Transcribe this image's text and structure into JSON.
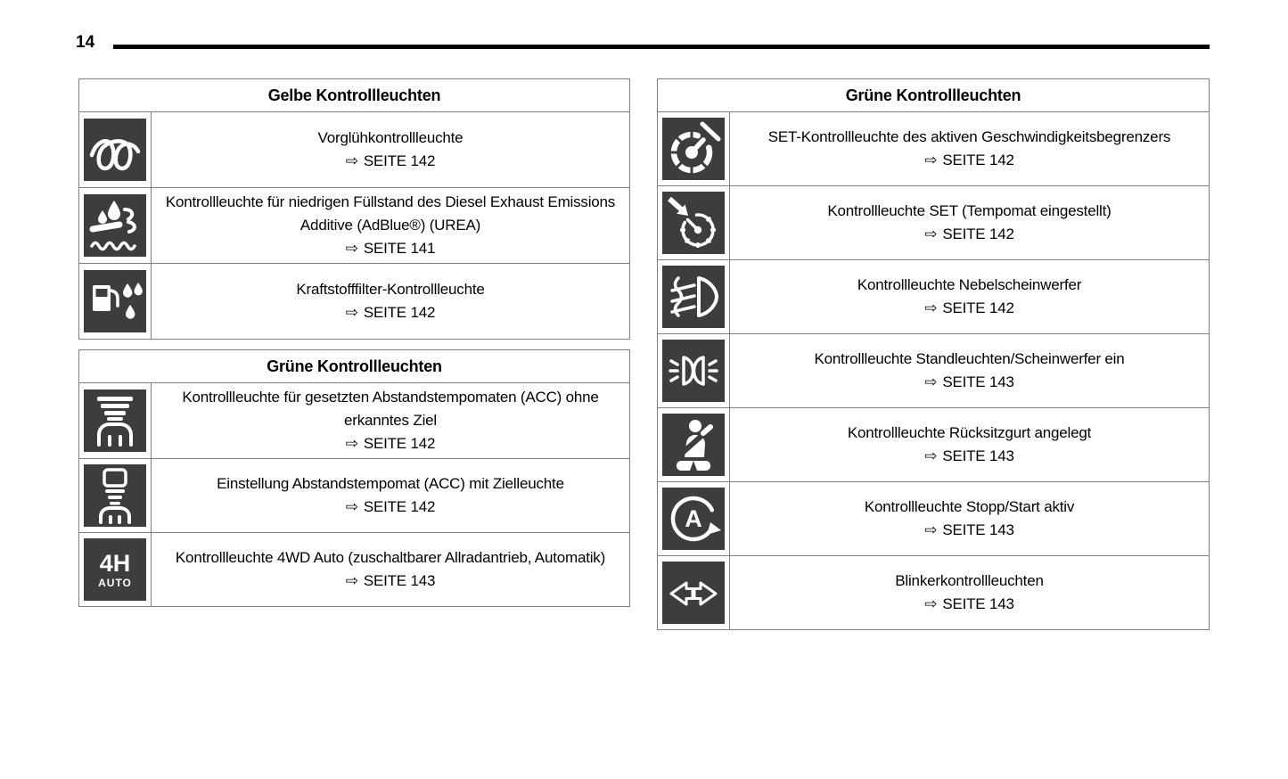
{
  "page": {
    "number": "14"
  },
  "glyphs": {
    "page_ref_arrow": "⇨"
  },
  "colors": {
    "icon_bg": "#3d3d3d",
    "icon_fg": "#ffffff",
    "table_border": "#808080",
    "top_rule": "#000000"
  },
  "tables": [
    {
      "id": "yellow",
      "column": "left",
      "header": "Gelbe Kontrollleuchten",
      "rows": [
        {
          "icon": "glow-plug-icon",
          "title": "Vorglühkontrollleuchte",
          "page_ref": "SEITE 142"
        },
        {
          "icon": "def-low-icon",
          "title": "Kontrollleuchte für niedrigen Füllstand des Diesel Exhaust Emissions Additive (AdBlue®) (UREA)",
          "page_ref": "SEITE 141"
        },
        {
          "icon": "fuel-filter-icon",
          "title": "Kraftstofffilter-Kontrollleuchte",
          "page_ref": "SEITE 142"
        }
      ]
    },
    {
      "id": "green-left",
      "column": "left",
      "header": "Grüne Kontrollleuchten",
      "rows": [
        {
          "icon": "acc-no-target-icon",
          "title": "Kontrollleuchte für gesetzten Abstandstempomaten (ACC) ohne erkanntes Ziel",
          "page_ref": "SEITE 142"
        },
        {
          "icon": "acc-target-icon",
          "title": "Einstellung Abstandstempomat (ACC) mit Zielleuchte",
          "page_ref": "SEITE 142"
        },
        {
          "icon": "four-wd-auto-icon",
          "icon_text": [
            "4H",
            "AUTO"
          ],
          "title": "Kontrollleuchte 4WD Auto (zuschaltbarer Allradantrieb, Automatik)",
          "page_ref": "SEITE 143"
        }
      ]
    },
    {
      "id": "green-right",
      "column": "right",
      "header": "Grüne Kontrollleuchten",
      "rows": [
        {
          "icon": "speed-limiter-icon",
          "title": "SET-Kontrollleuchte des aktiven Geschwindigkeitsbegrenzers",
          "page_ref": "SEITE 142"
        },
        {
          "icon": "cruise-set-icon",
          "title": "Kontrollleuchte SET (Tempomat eingestellt)",
          "page_ref": "SEITE 142"
        },
        {
          "icon": "fog-light-icon",
          "title": "Kontrollleuchte Nebelscheinwerfer",
          "page_ref": "SEITE 142"
        },
        {
          "icon": "position-lights-icon",
          "title": "Kontrollleuchte Standleuchten/Scheinwerfer ein",
          "page_ref": "SEITE 143"
        },
        {
          "icon": "seatbelt-icon",
          "title": "Kontrollleuchte Rücksitzgurt angelegt",
          "page_ref": "SEITE 143"
        },
        {
          "icon": "stop-start-icon",
          "icon_text": [
            "A"
          ],
          "title": "Kontrollleuchte Stopp/Start aktiv",
          "page_ref": "SEITE 143"
        },
        {
          "icon": "turn-signal-icon",
          "title": "Blinkerkontrollleuchten",
          "page_ref": "SEITE 143"
        }
      ]
    }
  ]
}
